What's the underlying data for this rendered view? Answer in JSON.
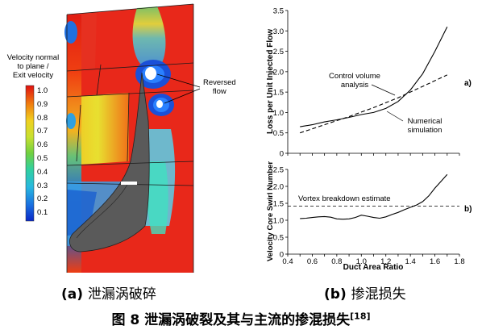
{
  "panel_a": {
    "legend_title_lines": [
      "Velocity normal",
      "to plane /",
      "Exit velocity"
    ],
    "legend_ticks": [
      "1.0",
      "0.9",
      "0.8",
      "0.7",
      "0.6",
      "0.5",
      "0.4",
      "0.3",
      "0.2",
      "0.1"
    ],
    "annotation": [
      "Reversed",
      "flow"
    ],
    "caption_letter": "(a)",
    "caption_text": "泄漏涡破碎"
  },
  "panel_b": {
    "caption_letter": "(b)",
    "caption_text": "掺混损失"
  },
  "figure_caption": {
    "text": "图 8 泄漏涡破裂及其与主流的掺混损失",
    "ref": "[18]"
  },
  "chart_data": [
    {
      "type": "line",
      "panel": "a)",
      "ylabel": "Loss per Unit Injected Flow",
      "ylim": [
        0,
        3.5
      ],
      "yticks": [
        "0",
        "0.5",
        "1.0",
        "1.5",
        "2.0",
        "2.5",
        "3.0",
        "3.5"
      ],
      "xlim": [
        0.4,
        1.8
      ],
      "series": [
        {
          "name": "Numerical simulation",
          "x": [
            0.5,
            0.6,
            0.7,
            0.8,
            0.9,
            1.0,
            1.1,
            1.2,
            1.3,
            1.4,
            1.5,
            1.6,
            1.7
          ],
          "y": [
            0.65,
            0.7,
            0.77,
            0.82,
            0.88,
            0.95,
            1.0,
            1.1,
            1.27,
            1.55,
            1.95,
            2.5,
            3.1
          ]
        },
        {
          "name": "Control volume analysis",
          "x": [
            0.5,
            0.6,
            0.7,
            0.8,
            0.9,
            1.0,
            1.1,
            1.2,
            1.3,
            1.4,
            1.5,
            1.6,
            1.7
          ],
          "y": [
            0.5,
            0.6,
            0.7,
            0.8,
            0.9,
            1.01,
            1.12,
            1.24,
            1.36,
            1.5,
            1.64,
            1.78,
            1.92
          ]
        }
      ]
    },
    {
      "type": "line",
      "panel": "b)",
      "ylabel": "Velocity Core Swirl Number",
      "xlabel": "Duct Area Ratio",
      "ylim": [
        0,
        2.5
      ],
      "yticks": [
        "0",
        "0.5",
        "1.0",
        "1.5",
        "2.0",
        "2.5"
      ],
      "xlim": [
        0.4,
        1.8
      ],
      "xticks": [
        "0.4",
        "0.5",
        "0.6",
        "0.7",
        "0.8",
        "0.9",
        "1.0",
        "1.1",
        "1.2",
        "1.3",
        "1.4",
        "1.5",
        "1.6",
        "1.7",
        "1.8"
      ],
      "reference_line": {
        "label": "Vortex breakdown estimate",
        "y": 1.42
      },
      "series": [
        {
          "name": "swirl",
          "x": [
            0.5,
            0.55,
            0.6,
            0.65,
            0.7,
            0.75,
            0.8,
            0.85,
            0.9,
            0.95,
            1.0,
            1.05,
            1.1,
            1.15,
            1.2,
            1.25,
            1.3,
            1.35,
            1.4,
            1.45,
            1.5,
            1.55,
            1.6,
            1.65,
            1.7
          ],
          "y": [
            1.05,
            1.06,
            1.08,
            1.1,
            1.11,
            1.09,
            1.04,
            1.03,
            1.04,
            1.08,
            1.15,
            1.12,
            1.08,
            1.06,
            1.1,
            1.17,
            1.23,
            1.31,
            1.38,
            1.45,
            1.55,
            1.72,
            1.95,
            2.15,
            2.35
          ]
        }
      ]
    }
  ]
}
